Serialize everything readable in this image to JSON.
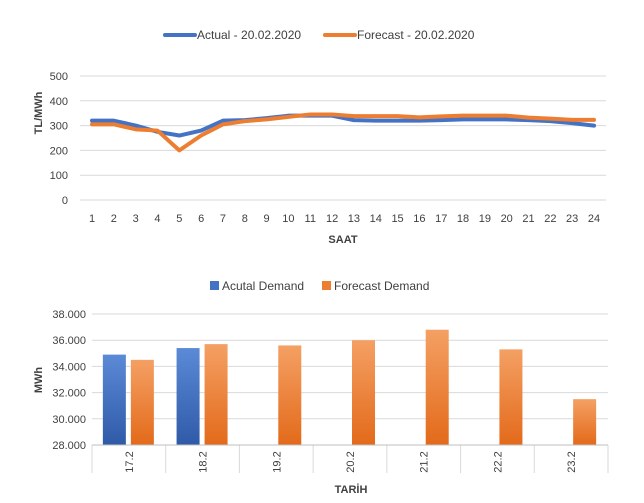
{
  "chart_data": [
    {
      "type": "line",
      "x": [
        1,
        2,
        3,
        4,
        5,
        6,
        7,
        8,
        9,
        10,
        11,
        12,
        13,
        14,
        15,
        16,
        17,
        18,
        19,
        20,
        21,
        22,
        23,
        24
      ],
      "xlabel": "SAAT",
      "ylabel": "TL/MWh",
      "ylim": [
        0,
        500
      ],
      "yticks": [
        "0",
        "100",
        "200",
        "300",
        "400",
        "500"
      ],
      "grid": true,
      "legend": "top",
      "series": [
        {
          "name": "Actual - 20.02.2020",
          "color": "#4472C4",
          "values": [
            320,
            320,
            300,
            275,
            260,
            280,
            320,
            322,
            330,
            340,
            340,
            340,
            322,
            320,
            320,
            320,
            322,
            325,
            325,
            325,
            322,
            318,
            310,
            300
          ]
        },
        {
          "name": "Forecast - 20.02.2020",
          "color": "#ED7D31",
          "values": [
            305,
            305,
            285,
            280,
            200,
            260,
            305,
            318,
            325,
            335,
            345,
            345,
            338,
            338,
            338,
            333,
            337,
            340,
            340,
            340,
            332,
            328,
            323,
            323
          ]
        }
      ]
    },
    {
      "type": "bar",
      "categories": [
        "17.2",
        "18.2",
        "19.2",
        "20.2",
        "21.2",
        "22.2",
        "23.2"
      ],
      "xlabel": "TARİH",
      "ylabel": "MWh",
      "ylim": [
        28000,
        38000
      ],
      "yticks": [
        "28.000",
        "30.000",
        "32.000",
        "34.000",
        "36.000",
        "38.000"
      ],
      "grid": true,
      "legend": "top",
      "series": [
        {
          "name": "Acutal Demand",
          "color": "#4472C4",
          "values": [
            34900,
            35400,
            null,
            null,
            null,
            null,
            null
          ]
        },
        {
          "name": "Forecast Demand",
          "color": "#ED7D31",
          "values": [
            34500,
            35700,
            35600,
            36000,
            36800,
            35300,
            31500
          ]
        }
      ]
    }
  ]
}
